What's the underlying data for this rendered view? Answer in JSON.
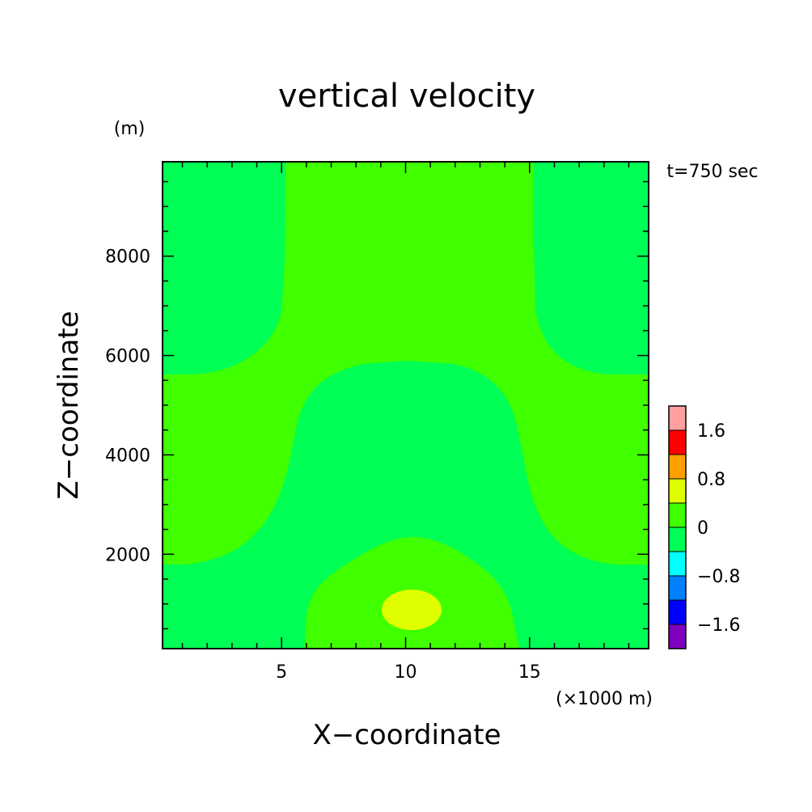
{
  "chart_data": {
    "type": "heatmap",
    "title": "vertical velocity",
    "xlabel": "X−coordinate",
    "ylabel": "Z−coordinate",
    "x_unit": "(×1000 m)",
    "y_unit": "(m)",
    "time_label": "t=750 sec",
    "xlim": [
      0.2,
      19.8
    ],
    "ylim": [
      100,
      9900
    ],
    "x_ticks": [
      5,
      10,
      15
    ],
    "x_tick_labels": [
      "5",
      "10",
      "15"
    ],
    "y_ticks": [
      2000,
      4000,
      6000,
      8000
    ],
    "y_tick_labels": [
      "2000",
      "4000",
      "6000",
      "8000"
    ],
    "colorbar": {
      "levels": [
        -2.0,
        -1.6,
        -1.2,
        -0.8,
        -0.4,
        0,
        0.4,
        0.8,
        1.2,
        1.6,
        2.0
      ],
      "colors": [
        "#7f00bf",
        "#0000ff",
        "#007fff",
        "#00ffff",
        "#00ff55",
        "#3fff00",
        "#dfff00",
        "#ff9f00",
        "#ff0000",
        "#ff9f9f"
      ],
      "tick_values": [
        -1.6,
        -0.8,
        0,
        0.8,
        1.6
      ],
      "tick_labels": [
        "−1.6",
        "−0.8",
        "0",
        "0.8",
        "1.6"
      ]
    },
    "regions": [
      {
        "level_range": [
          -0.4,
          0
        ],
        "color": "#00ff55",
        "desc": "background"
      },
      {
        "level_range": [
          0,
          0.4
        ],
        "color": "#3fff00",
        "desc": "central column from x 5.2 to 15.2 km above z 5900 m, side bands near z 1800-5600 m, and bottom lobe x 6-14.5 km below z 2300 m"
      },
      {
        "level_range": [
          0.4,
          0.8
        ],
        "color": "#dfff00",
        "desc": "core near x 10.2 km, z 800 m"
      }
    ]
  }
}
